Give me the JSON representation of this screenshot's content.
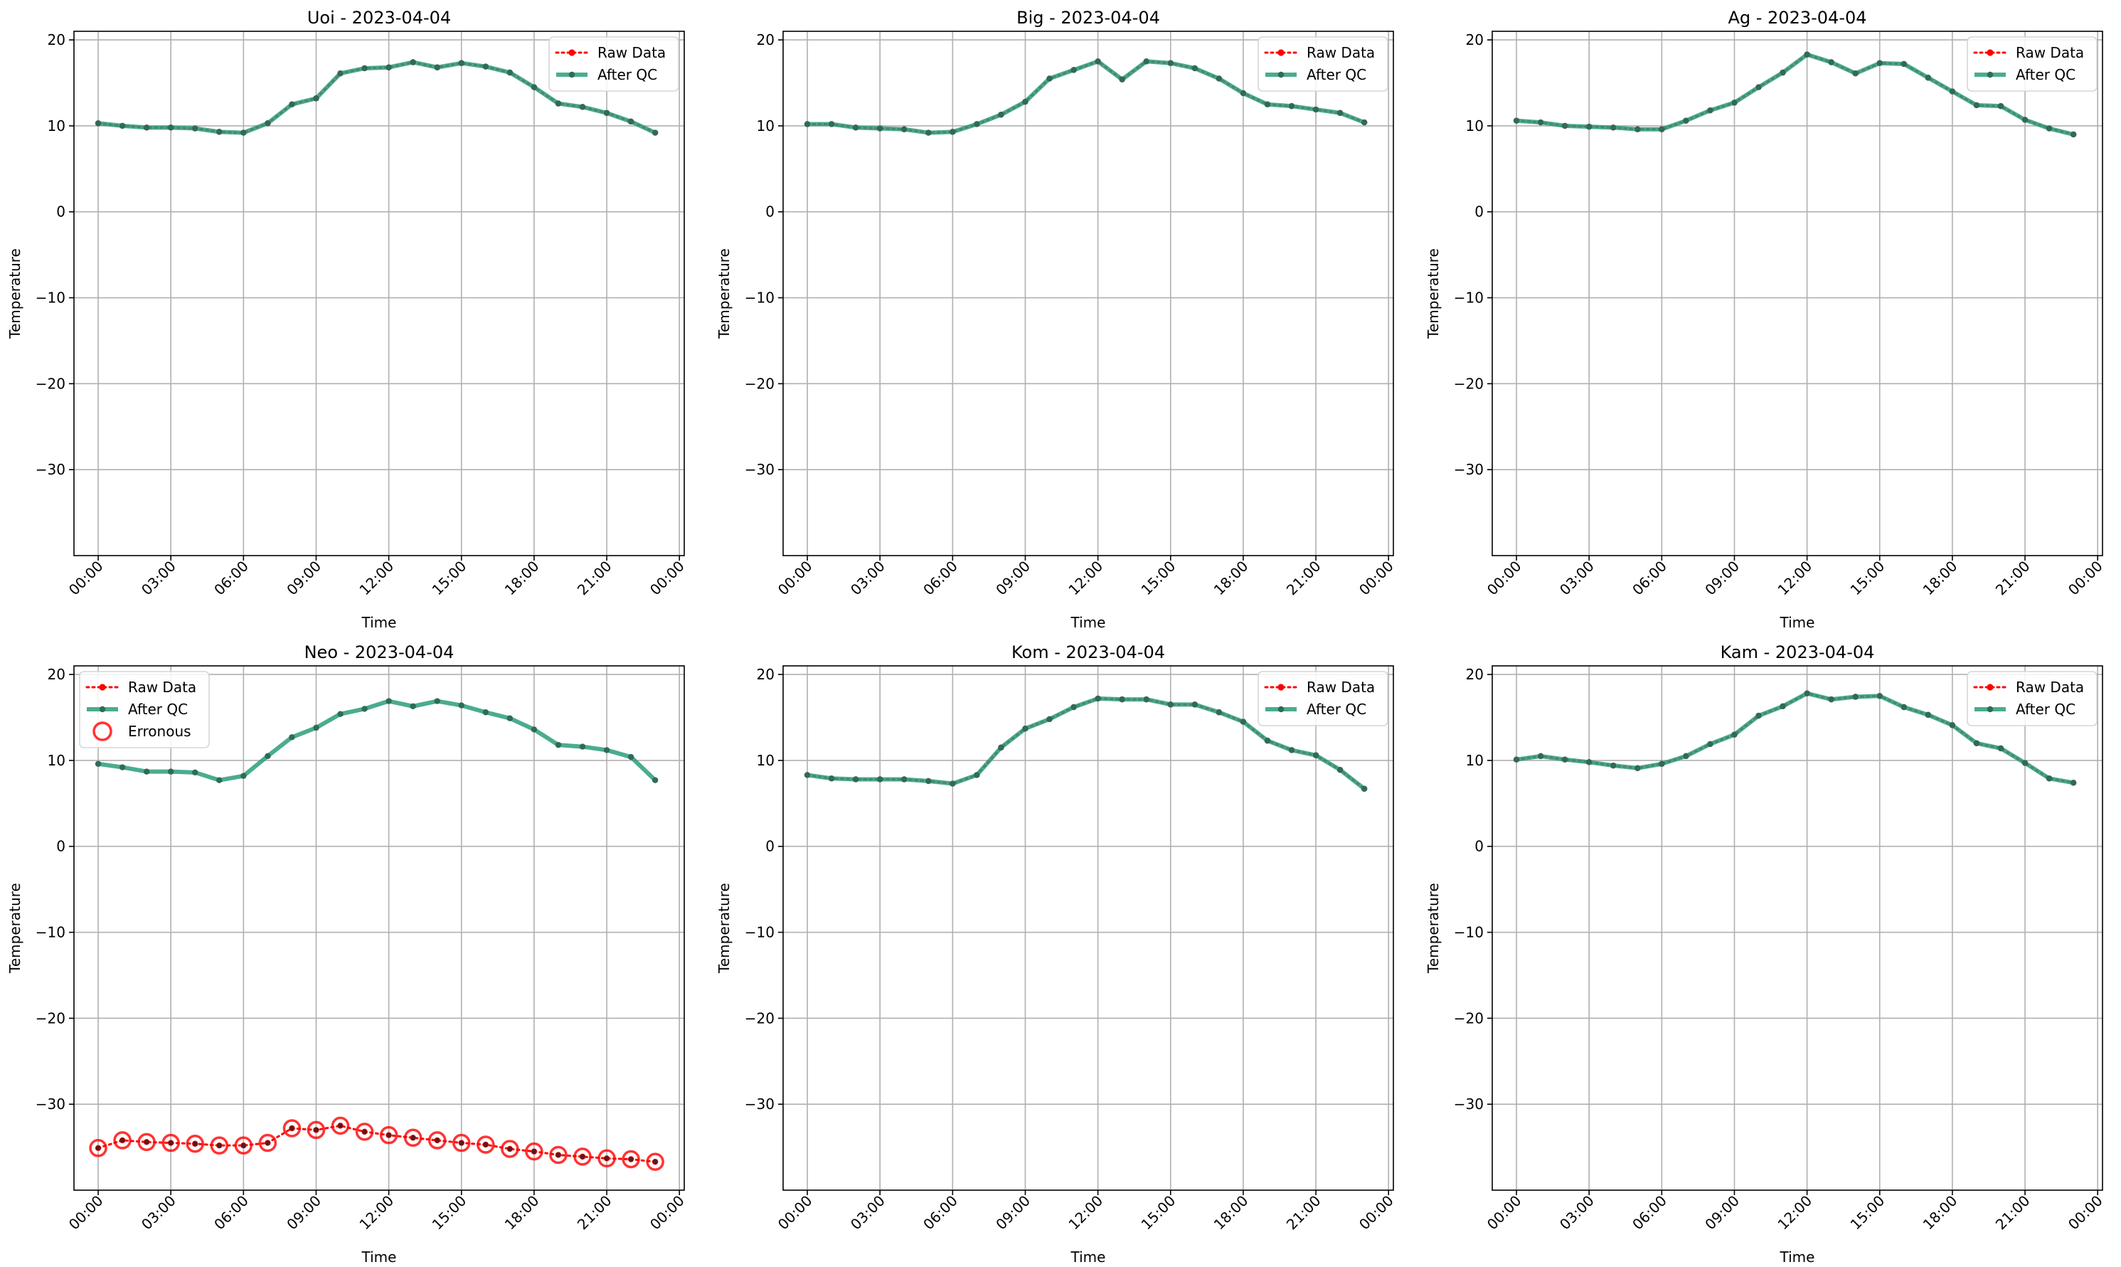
{
  "chart_data": [
    {
      "type": "line",
      "title": "Uoi - 2023-04-04",
      "xlabel": "Time",
      "ylabel": "Temperature",
      "ylim": [
        -40,
        21
      ],
      "yticks": [
        "20",
        "10",
        "0",
        "−10",
        "−20",
        "−30"
      ],
      "xticks": [
        "00:00",
        "03:00",
        "06:00",
        "09:00",
        "12:00",
        "15:00",
        "18:00",
        "21:00",
        "00:00"
      ],
      "grid": true,
      "legend_position": "top-right",
      "x_hours": [
        0,
        1,
        2,
        3,
        4,
        5,
        6,
        7,
        8,
        9,
        10,
        11,
        12,
        13,
        14,
        15,
        16,
        17,
        18,
        19,
        20,
        21,
        22,
        23
      ],
      "series": [
        {
          "name": "Raw Data",
          "style": "dotted",
          "color": "#ff0000",
          "values": [
            10.3,
            10.0,
            9.8,
            9.8,
            9.7,
            9.3,
            9.2,
            10.3,
            12.5,
            13.2,
            16.1,
            16.7,
            16.8,
            17.4,
            16.8,
            17.3,
            16.9,
            16.2,
            14.5,
            12.6,
            12.2,
            11.5,
            10.5,
            9.2
          ]
        },
        {
          "name": "After QC",
          "style": "solid",
          "color": "#2a9d7c",
          "values": [
            10.3,
            10.0,
            9.8,
            9.8,
            9.7,
            9.3,
            9.2,
            10.3,
            12.5,
            13.2,
            16.1,
            16.7,
            16.8,
            17.4,
            16.8,
            17.3,
            16.9,
            16.2,
            14.5,
            12.6,
            12.2,
            11.5,
            10.5,
            9.2
          ]
        }
      ]
    },
    {
      "type": "line",
      "title": "Big - 2023-04-04",
      "xlabel": "Time",
      "ylabel": "Temperature",
      "ylim": [
        -40,
        21
      ],
      "yticks": [
        "20",
        "10",
        "0",
        "−10",
        "−20",
        "−30"
      ],
      "xticks": [
        "00:00",
        "03:00",
        "06:00",
        "09:00",
        "12:00",
        "15:00",
        "18:00",
        "21:00",
        "00:00"
      ],
      "grid": true,
      "legend_position": "top-right",
      "x_hours": [
        0,
        1,
        2,
        3,
        4,
        5,
        6,
        7,
        8,
        9,
        10,
        11,
        12,
        13,
        14,
        15,
        16,
        17,
        18,
        19,
        20,
        21,
        22,
        23
      ],
      "series": [
        {
          "name": "Raw Data",
          "style": "dotted",
          "color": "#ff0000",
          "values": [
            10.2,
            10.2,
            9.8,
            9.7,
            9.6,
            9.2,
            9.3,
            10.2,
            11.3,
            12.8,
            15.5,
            16.5,
            17.5,
            15.4,
            17.5,
            17.3,
            16.7,
            15.5,
            13.8,
            12.5,
            12.3,
            11.9,
            11.5,
            10.4
          ]
        },
        {
          "name": "After QC",
          "style": "solid",
          "color": "#2a9d7c",
          "values": [
            10.2,
            10.2,
            9.8,
            9.7,
            9.6,
            9.2,
            9.3,
            10.2,
            11.3,
            12.8,
            15.5,
            16.5,
            17.5,
            15.4,
            17.5,
            17.3,
            16.7,
            15.5,
            13.8,
            12.5,
            12.3,
            11.9,
            11.5,
            10.4
          ]
        }
      ]
    },
    {
      "type": "line",
      "title": "Ag - 2023-04-04",
      "xlabel": "Time",
      "ylabel": "Temperature",
      "ylim": [
        -40,
        21
      ],
      "yticks": [
        "20",
        "10",
        "0",
        "−10",
        "−20",
        "−30"
      ],
      "xticks": [
        "00:00",
        "03:00",
        "06:00",
        "09:00",
        "12:00",
        "15:00",
        "18:00",
        "21:00",
        "00:00"
      ],
      "grid": true,
      "legend_position": "top-right",
      "x_hours": [
        0,
        1,
        2,
        3,
        4,
        5,
        6,
        7,
        8,
        9,
        10,
        11,
        12,
        13,
        14,
        15,
        16,
        17,
        18,
        19,
        20,
        21,
        22,
        23
      ],
      "series": [
        {
          "name": "Raw Data",
          "style": "dotted",
          "color": "#ff0000",
          "values": [
            10.6,
            10.4,
            10.0,
            9.9,
            9.8,
            9.6,
            9.6,
            10.6,
            11.8,
            12.7,
            14.5,
            16.2,
            18.3,
            17.4,
            16.1,
            17.3,
            17.2,
            15.6,
            14.0,
            12.4,
            12.3,
            10.7,
            9.7,
            9.0
          ]
        },
        {
          "name": "After QC",
          "style": "solid",
          "color": "#2a9d7c",
          "values": [
            10.6,
            10.4,
            10.0,
            9.9,
            9.8,
            9.6,
            9.6,
            10.6,
            11.8,
            12.7,
            14.5,
            16.2,
            18.3,
            17.4,
            16.1,
            17.3,
            17.2,
            15.6,
            14.0,
            12.4,
            12.3,
            10.7,
            9.7,
            9.0
          ]
        }
      ]
    },
    {
      "type": "line",
      "title": "Neo - 2023-04-04",
      "xlabel": "Time",
      "ylabel": "Temperature",
      "ylim": [
        -40,
        21
      ],
      "yticks": [
        "20",
        "10",
        "0",
        "−10",
        "−20",
        "−30"
      ],
      "xticks": [
        "00:00",
        "03:00",
        "06:00",
        "09:00",
        "12:00",
        "15:00",
        "18:00",
        "21:00",
        "00:00"
      ],
      "grid": true,
      "legend_position": "top-left",
      "x_hours": [
        0,
        1,
        2,
        3,
        4,
        5,
        6,
        7,
        8,
        9,
        10,
        11,
        12,
        13,
        14,
        15,
        16,
        17,
        18,
        19,
        20,
        21,
        22,
        23
      ],
      "series": [
        {
          "name": "Raw Data",
          "style": "dotted",
          "color": "#ff0000",
          "values": [
            -35.1,
            -34.2,
            -34.4,
            -34.5,
            -34.6,
            -34.8,
            -34.8,
            -34.5,
            -32.8,
            -33.0,
            -32.5,
            -33.2,
            -33.6,
            -33.9,
            -34.2,
            -34.5,
            -34.7,
            -35.2,
            -35.5,
            -35.9,
            -36.1,
            -36.3,
            -36.4,
            -36.7
          ]
        },
        {
          "name": "After QC",
          "style": "solid",
          "color": "#2a9d7c",
          "values": [
            9.6,
            9.2,
            8.7,
            8.7,
            8.6,
            7.7,
            8.2,
            10.5,
            12.7,
            13.8,
            15.4,
            16.0,
            16.9,
            16.3,
            16.9,
            16.4,
            15.6,
            14.9,
            13.6,
            11.8,
            11.6,
            11.2,
            10.4,
            7.7
          ]
        },
        {
          "name": "Erronous",
          "style": "open-circle",
          "color": "#ff0000",
          "values": [
            -35.1,
            -34.2,
            -34.4,
            -34.5,
            -34.6,
            -34.8,
            -34.8,
            -34.5,
            -32.8,
            -33.0,
            -32.5,
            -33.2,
            -33.6,
            -33.9,
            -34.2,
            -34.5,
            -34.7,
            -35.2,
            -35.5,
            -35.9,
            -36.1,
            -36.3,
            -36.4,
            -36.7
          ]
        }
      ]
    },
    {
      "type": "line",
      "title": "Kom - 2023-04-04",
      "xlabel": "Time",
      "ylabel": "Temperature",
      "ylim": [
        -40,
        21
      ],
      "yticks": [
        "20",
        "10",
        "0",
        "−10",
        "−20",
        "−30"
      ],
      "xticks": [
        "00:00",
        "03:00",
        "06:00",
        "09:00",
        "12:00",
        "15:00",
        "18:00",
        "21:00",
        "00:00"
      ],
      "grid": true,
      "legend_position": "top-right",
      "x_hours": [
        0,
        1,
        2,
        3,
        4,
        5,
        6,
        7,
        8,
        9,
        10,
        11,
        12,
        13,
        14,
        15,
        16,
        17,
        18,
        19,
        20,
        21,
        22,
        23
      ],
      "series": [
        {
          "name": "Raw Data",
          "style": "dotted",
          "color": "#ff0000",
          "values": [
            8.3,
            7.9,
            7.8,
            7.8,
            7.8,
            7.6,
            7.3,
            8.3,
            11.5,
            13.7,
            14.8,
            16.2,
            17.2,
            17.1,
            17.1,
            16.5,
            16.5,
            15.6,
            14.5,
            12.3,
            11.2,
            10.6,
            8.9,
            6.7
          ]
        },
        {
          "name": "After QC",
          "style": "solid",
          "color": "#2a9d7c",
          "values": [
            8.3,
            7.9,
            7.8,
            7.8,
            7.8,
            7.6,
            7.3,
            8.3,
            11.5,
            13.7,
            14.8,
            16.2,
            17.2,
            17.1,
            17.1,
            16.5,
            16.5,
            15.6,
            14.5,
            12.3,
            11.2,
            10.6,
            8.9,
            6.7
          ]
        }
      ]
    },
    {
      "type": "line",
      "title": "Kam - 2023-04-04",
      "xlabel": "Time",
      "ylabel": "Temperature",
      "ylim": [
        -40,
        21
      ],
      "yticks": [
        "20",
        "10",
        "0",
        "−10",
        "−20",
        "−30"
      ],
      "xticks": [
        "00:00",
        "03:00",
        "06:00",
        "09:00",
        "12:00",
        "15:00",
        "18:00",
        "21:00",
        "00:00"
      ],
      "grid": true,
      "legend_position": "top-right",
      "x_hours": [
        0,
        1,
        2,
        3,
        4,
        5,
        6,
        7,
        8,
        9,
        10,
        11,
        12,
        13,
        14,
        15,
        16,
        17,
        18,
        19,
        20,
        21,
        22,
        23
      ],
      "series": [
        {
          "name": "Raw Data",
          "style": "dotted",
          "color": "#ff0000",
          "values": [
            10.1,
            10.5,
            10.1,
            9.8,
            9.4,
            9.1,
            9.6,
            10.5,
            11.9,
            13.0,
            15.2,
            16.3,
            17.8,
            17.1,
            17.4,
            17.5,
            16.2,
            15.3,
            14.1,
            12.0,
            11.4,
            9.7,
            7.9,
            7.4
          ]
        },
        {
          "name": "After QC",
          "style": "solid",
          "color": "#2a9d7c",
          "values": [
            10.1,
            10.5,
            10.1,
            9.8,
            9.4,
            9.1,
            9.6,
            10.5,
            11.9,
            13.0,
            15.2,
            16.3,
            17.8,
            17.1,
            17.4,
            17.5,
            16.2,
            15.3,
            14.1,
            12.0,
            11.4,
            9.7,
            7.9,
            7.4
          ]
        }
      ]
    }
  ]
}
